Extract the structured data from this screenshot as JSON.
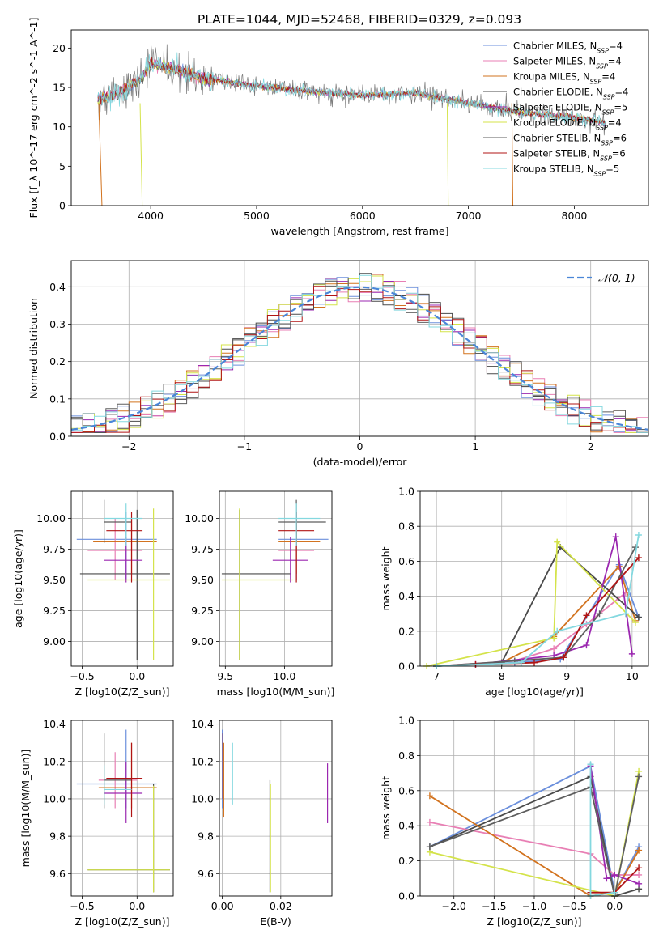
{
  "title": "PLATE=1044, MJD=52468, FIBERID=0329, z=0.093",
  "series_colors": [
    "#6b8fdc",
    "#e87fb4",
    "#d2731f",
    "#4a4a4a",
    "#9b27b0",
    "#d4e34a",
    "#5e5e5e",
    "#b01414",
    "#84d8df"
  ],
  "legend": [
    "Chabrier MILES, N_SSP=4",
    "Salpeter MILES, N_SSP=4",
    "Kroupa MILES, N_SSP=4",
    "Chabrier ELODIE, N_SSP=4",
    "Salpeter ELODIE, N_SSP=5",
    "Kroupa ELODIE, N_SSP=4",
    "Chabrier STELIB, N_SSP=6",
    "Salpeter STELIB, N_SSP=6",
    "Kroupa STELIB, N_SSP=5"
  ],
  "chart_data": [
    {
      "type": "line",
      "name": "spectrum",
      "xlabel": "wavelength [Angstrom, rest frame]",
      "ylabel": "Flux [f_λ 10^-17 erg cm^-2 s^-1 A^-1]",
      "xlim": [
        3250,
        8700
      ],
      "ylim": [
        0,
        22.3
      ],
      "xticks": [
        4000,
        5000,
        6000,
        7000,
        8000
      ],
      "yticks": [
        0,
        5,
        10,
        15,
        20
      ],
      "legend_position": "top-right",
      "continuum_knots": {
        "x": [
          3500,
          3700,
          3900,
          4000,
          4200,
          4500,
          5000,
          5500,
          6000,
          6500,
          7000,
          7500,
          8000,
          8300
        ],
        "y": [
          13.5,
          14.2,
          16.0,
          18.0,
          17.5,
          16.2,
          15.2,
          14.5,
          14.0,
          14.3,
          13.0,
          11.8,
          11.2,
          10.5
        ]
      },
      "spectrum_range": [
        3500,
        8300
      ]
    },
    {
      "type": "bar",
      "name": "residuals",
      "xlabel": "(data-model)/error",
      "ylabel": "Normed distribution",
      "xlim": [
        -2.5,
        2.5
      ],
      "ylim": [
        0,
        0.47
      ],
      "xticks": [
        -2,
        -1,
        0,
        1,
        2
      ],
      "yticks": [
        0,
        0.1,
        0.2,
        0.3,
        0.4
      ],
      "bin_width": 0.1,
      "series_name": "N(0,1)",
      "legend_position": "top-right"
    },
    {
      "type": "scatter",
      "name": "age-vs-Z",
      "xlabel": "Z [log10(Z/Z_sun)]",
      "ylabel": "age [log10(age/yr)]",
      "xlim": [
        -0.6,
        0.33
      ],
      "ylim": [
        8.8,
        10.22
      ],
      "xticks": [
        -0.5,
        0.0
      ],
      "yticks": [
        9.0,
        9.25,
        9.5,
        9.75,
        10.0
      ],
      "points": [
        {
          "s": 0,
          "x": -0.1,
          "y": 9.83,
          "xe": [
            -0.55,
            0.18
          ],
          "ye": [
            9.5,
            10.05
          ]
        },
        {
          "s": 1,
          "x": -0.2,
          "y": 9.74,
          "xe": [
            -0.45,
            0.05
          ],
          "ye": [
            9.5,
            10.0
          ]
        },
        {
          "s": 2,
          "x": -0.05,
          "y": 9.81,
          "xe": [
            -0.4,
            0.18
          ],
          "ye": [
            9.55,
            10.0
          ]
        },
        {
          "s": 3,
          "x": 0.0,
          "y": 9.55,
          "xe": [
            -0.52,
            0.3
          ],
          "ye": [
            8.85,
            10.07
          ]
        },
        {
          "s": 4,
          "x": -0.1,
          "y": 9.66,
          "xe": [
            -0.3,
            0.05
          ],
          "ye": [
            9.48,
            9.85
          ]
        },
        {
          "s": 5,
          "x": 0.15,
          "y": 9.5,
          "xe": [
            -0.45,
            0.3
          ],
          "ye": [
            8.85,
            10.08
          ]
        },
        {
          "s": 6,
          "x": -0.3,
          "y": 9.97,
          "xe": [
            -0.3,
            -0.05
          ],
          "ye": [
            9.8,
            10.15
          ]
        },
        {
          "s": 7,
          "x": -0.05,
          "y": 9.9,
          "xe": [
            -0.28,
            0.05
          ],
          "ye": [
            9.48,
            10.05
          ]
        },
        {
          "s": 8,
          "x": -0.1,
          "y": 10.0,
          "xe": [
            -0.3,
            0.05
          ],
          "ye": [
            9.78,
            10.12
          ]
        }
      ]
    },
    {
      "type": "scatter",
      "name": "age-vs-mass",
      "xlabel": "mass [log10(M/M_sun)]",
      "ylabel": "",
      "xlim": [
        9.45,
        10.4
      ],
      "ylim": [
        8.8,
        10.22
      ],
      "xticks": [
        9.5,
        10.0
      ],
      "yticks": [
        9.0,
        9.25,
        9.5,
        9.75,
        10.0
      ],
      "points": [
        {
          "s": 0,
          "x": 10.1,
          "y": 9.83,
          "xe": [
            9.95,
            10.37
          ],
          "ye": [
            9.5,
            10.05
          ]
        },
        {
          "s": 1,
          "x": 10.1,
          "y": 9.74,
          "xe": [
            9.95,
            10.25
          ],
          "ye": [
            9.5,
            10.0
          ]
        },
        {
          "s": 2,
          "x": 10.1,
          "y": 9.81,
          "xe": [
            9.95,
            10.3
          ],
          "ye": [
            9.55,
            10.0
          ]
        },
        {
          "s": 3,
          "x": 9.62,
          "y": 9.55,
          "xe": [
            9.47,
            10.05
          ],
          "ye": [
            8.85,
            10.07
          ]
        },
        {
          "s": 4,
          "x": 10.05,
          "y": 9.66,
          "xe": [
            9.9,
            10.2
          ],
          "ye": [
            9.48,
            9.85
          ]
        },
        {
          "s": 5,
          "x": 9.62,
          "y": 9.5,
          "xe": [
            9.47,
            10.07
          ],
          "ye": [
            8.85,
            10.08
          ]
        },
        {
          "s": 6,
          "x": 10.1,
          "y": 9.97,
          "xe": [
            9.95,
            10.35
          ],
          "ye": [
            9.8,
            10.15
          ]
        },
        {
          "s": 7,
          "x": 10.1,
          "y": 9.9,
          "xe": [
            9.95,
            10.25
          ],
          "ye": [
            9.48,
            10.05
          ]
        },
        {
          "s": 8,
          "x": 10.1,
          "y": 10.0,
          "xe": [
            9.95,
            10.3
          ],
          "ye": [
            9.78,
            10.12
          ]
        }
      ]
    },
    {
      "type": "line",
      "name": "weight-vs-age",
      "xlabel": "age [log10(age/yr)]",
      "ylabel": "mass weight",
      "xlim": [
        6.75,
        10.25
      ],
      "ylim": [
        0,
        1.0
      ],
      "xticks": [
        7,
        8,
        9,
        10
      ],
      "yticks": [
        0.0,
        0.2,
        0.4,
        0.6,
        0.8,
        1.0
      ],
      "series": [
        {
          "s": 0,
          "x": [
            7.0,
            8.2,
            8.9,
            9.8,
            10.1
          ],
          "y": [
            0.0,
            0.02,
            0.04,
            0.58,
            0.28
          ]
        },
        {
          "s": 1,
          "x": [
            7.0,
            8.2,
            8.8,
            9.3,
            9.9
          ],
          "y": [
            0.0,
            0.03,
            0.1,
            0.24,
            0.42
          ]
        },
        {
          "s": 2,
          "x": [
            7.0,
            8.0,
            8.8,
            9.8,
            10.05
          ],
          "y": [
            0.0,
            0.02,
            0.17,
            0.57,
            0.26
          ]
        },
        {
          "s": 3,
          "x": [
            7.0,
            8.0,
            8.9,
            10.1
          ],
          "y": [
            0.0,
            0.02,
            0.68,
            0.28
          ]
        },
        {
          "s": 4,
          "x": [
            7.6,
            8.8,
            9.3,
            9.75,
            10.0
          ],
          "y": [
            0.01,
            0.06,
            0.12,
            0.74,
            0.07
          ]
        },
        {
          "s": 5,
          "x": [
            6.85,
            8.8,
            8.85,
            10.05
          ],
          "y": [
            0.0,
            0.16,
            0.71,
            0.25
          ]
        },
        {
          "s": 6,
          "x": [
            7.0,
            8.2,
            8.95,
            9.5,
            10.05
          ],
          "y": [
            0.0,
            0.03,
            0.05,
            0.3,
            0.68
          ]
        },
        {
          "s": 7,
          "x": [
            7.6,
            8.5,
            8.95,
            9.3,
            10.1
          ],
          "y": [
            0.01,
            0.02,
            0.05,
            0.29,
            0.62
          ]
        },
        {
          "s": 8,
          "x": [
            7.0,
            8.3,
            8.85,
            9.9,
            10.1
          ],
          "y": [
            0.0,
            0.02,
            0.2,
            0.3,
            0.75
          ]
        }
      ]
    },
    {
      "type": "scatter",
      "name": "mass-vs-Z",
      "xlabel": "Z [log10(Z/Z_sun)]",
      "ylabel": "mass [log10(M/M_sun)]",
      "xlim": [
        -0.6,
        0.33
      ],
      "ylim": [
        9.48,
        10.42
      ],
      "xticks": [
        -0.5,
        0.0
      ],
      "yticks": [
        9.6,
        9.8,
        10.0,
        10.2,
        10.4
      ],
      "points": [
        {
          "s": 0,
          "x": -0.1,
          "y": 10.08,
          "xe": [
            -0.55,
            0.18
          ],
          "ye": [
            9.95,
            10.37
          ]
        },
        {
          "s": 1,
          "x": -0.2,
          "y": 10.1,
          "xe": [
            -0.35,
            0.0
          ],
          "ye": [
            9.95,
            10.25
          ]
        },
        {
          "s": 2,
          "x": -0.05,
          "y": 10.06,
          "xe": [
            -0.35,
            0.18
          ],
          "ye": [
            9.95,
            10.3
          ]
        },
        {
          "s": 3,
          "x": 0.15,
          "y": 9.62,
          "xe": [
            -0.45,
            0.3
          ],
          "ye": [
            9.5,
            10.08
          ]
        },
        {
          "s": 4,
          "x": -0.1,
          "y": 10.03,
          "xe": [
            -0.3,
            0.05
          ],
          "ye": [
            9.87,
            10.2
          ]
        },
        {
          "s": 5,
          "x": 0.15,
          "y": 9.62,
          "xe": [
            -0.45,
            0.3
          ],
          "ye": [
            9.5,
            10.07
          ]
        },
        {
          "s": 6,
          "x": -0.3,
          "y": 10.1,
          "xe": [
            -0.3,
            -0.05
          ],
          "ye": [
            9.95,
            10.35
          ]
        },
        {
          "s": 7,
          "x": -0.05,
          "y": 10.11,
          "xe": [
            -0.28,
            0.05
          ],
          "ye": [
            9.9,
            10.3
          ]
        },
        {
          "s": 8,
          "x": -0.3,
          "y": 10.05,
          "xe": [
            -0.3,
            -0.05
          ],
          "ye": [
            9.97,
            10.18
          ]
        }
      ]
    },
    {
      "type": "scatter",
      "name": "mass-vs-EBV",
      "xlabel": "E(B-V)",
      "ylabel": "",
      "xlim": [
        -0.001,
        0.0375
      ],
      "ylim": [
        9.48,
        10.42
      ],
      "xticks": [
        0.0,
        0.02
      ],
      "yticks": [
        9.6,
        9.8,
        10.0,
        10.2,
        10.4
      ],
      "points": [
        {
          "s": 0,
          "x": 0.0,
          "y": 10.1,
          "xe": [
            0.0,
            0.0
          ],
          "ye": [
            9.95,
            10.37
          ]
        },
        {
          "s": 2,
          "x": 0.0005,
          "y": 10.1,
          "xe": [
            0.0005,
            0.0005
          ],
          "ye": [
            9.9,
            10.3
          ]
        },
        {
          "s": 3,
          "x": 0.0163,
          "y": 9.8,
          "xe": [
            0.0163,
            0.0163
          ],
          "ye": [
            9.5,
            10.1
          ]
        },
        {
          "s": 4,
          "x": 0.036,
          "y": 10.03,
          "xe": [
            0.036,
            0.036
          ],
          "ye": [
            9.87,
            10.19
          ]
        },
        {
          "s": 5,
          "x": 0.0165,
          "y": 9.8,
          "xe": [
            0.0165,
            0.0165
          ],
          "ye": [
            9.5,
            10.08
          ]
        },
        {
          "s": 7,
          "x": 0.0002,
          "y": 10.15,
          "xe": [
            0.0002,
            0.0002
          ],
          "ye": [
            10.0,
            10.35
          ]
        },
        {
          "s": 8,
          "x": 0.0035,
          "y": 10.1,
          "xe": [
            0.0035,
            0.0035
          ],
          "ye": [
            9.97,
            10.3
          ]
        }
      ]
    },
    {
      "type": "line",
      "name": "weight-vs-Z",
      "xlabel": "Z [log10(Z/Z_sun)]",
      "ylabel": "mass weight",
      "xlim": [
        -2.42,
        0.42
      ],
      "ylim": [
        0,
        1.0
      ],
      "xticks": [
        -2.0,
        -1.5,
        -1.0,
        -0.5,
        0.0
      ],
      "yticks": [
        0.0,
        0.2,
        0.4,
        0.6,
        0.8,
        1.0
      ],
      "series": [
        {
          "s": 0,
          "x": [
            -2.3,
            -0.3,
            0.0,
            0.3
          ],
          "y": [
            0.28,
            0.74,
            0.02,
            0.28
          ]
        },
        {
          "s": 1,
          "x": [
            -2.3,
            -0.3,
            0.0,
            0.3
          ],
          "y": [
            0.42,
            0.24,
            0.12,
            0.12
          ]
        },
        {
          "s": 2,
          "x": [
            -2.3,
            -0.3,
            0.0,
            0.3
          ],
          "y": [
            0.57,
            0.0,
            0.02,
            0.26
          ]
        },
        {
          "s": 3,
          "x": [
            -2.3,
            -0.3,
            0.0,
            0.3
          ],
          "y": [
            0.28,
            0.68,
            0.0,
            0.04
          ]
        },
        {
          "s": 4,
          "x": [
            -0.3,
            -0.1,
            0.0,
            0.3
          ],
          "y": [
            0.74,
            0.1,
            0.12,
            0.07
          ]
        },
        {
          "s": 5,
          "x": [
            -2.3,
            0.0,
            0.3
          ],
          "y": [
            0.25,
            0.0,
            0.71
          ]
        },
        {
          "s": 6,
          "x": [
            -2.3,
            -0.3,
            0.0,
            0.3
          ],
          "y": [
            0.28,
            0.62,
            0.0,
            0.68
          ]
        },
        {
          "s": 7,
          "x": [
            -0.3,
            0.0,
            0.3
          ],
          "y": [
            0.02,
            0.02,
            0.16
          ]
        },
        {
          "s": 8,
          "x": [
            -0.3,
            -0.3,
            0.0
          ],
          "y": [
            0.75,
            0.0,
            0.02
          ]
        }
      ]
    }
  ]
}
